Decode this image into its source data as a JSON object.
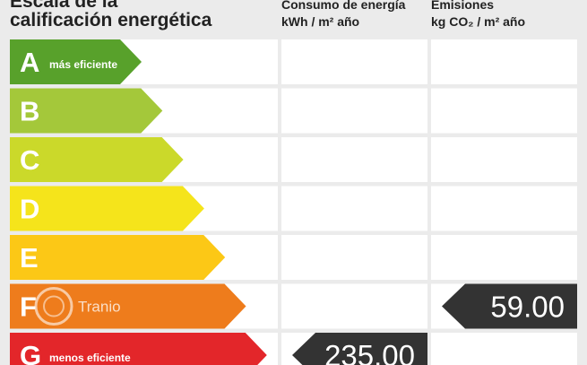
{
  "header": {
    "title_lines": [
      "Escala de la",
      "calificación energética"
    ]
  },
  "columns": [
    {
      "title": "Consumo de energía",
      "unit": "kWh / m² año",
      "rating": "G",
      "value": "235.00"
    },
    {
      "title": "Emisiones",
      "unit": "kg CO₂ / m² año",
      "rating": "F",
      "value": "59.00"
    }
  ],
  "ratings": [
    {
      "letter": "A",
      "label": "más eficiente",
      "color": "#58a12b"
    },
    {
      "letter": "B",
      "color": "#a4c83a"
    },
    {
      "letter": "C",
      "color": "#cbd92a"
    },
    {
      "letter": "D",
      "color": "#f5e41b"
    },
    {
      "letter": "E",
      "color": "#fcc816"
    },
    {
      "letter": "F",
      "color": "#ee7c1c"
    },
    {
      "letter": "G",
      "label": "menos eficiente",
      "color": "#e3262a"
    }
  ],
  "watermark": "Tranio"
}
